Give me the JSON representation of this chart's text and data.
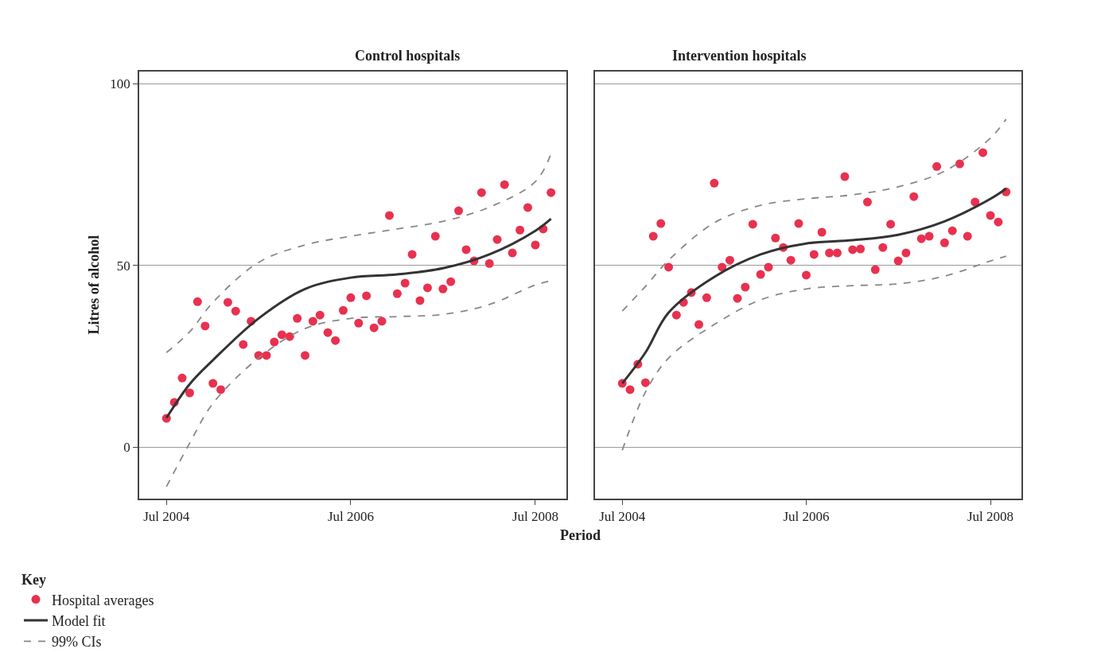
{
  "chart_data": [
    {
      "type": "scatter",
      "title": "Control hospitals",
      "xlabel": "Period",
      "ylabel": "Litres of alcohol",
      "legend_title": "Key",
      "legend": "bottom left",
      "grid": "y",
      "xlim": [
        "2004-03-15",
        "2008-11-01"
      ],
      "ylim": [
        -14.2,
        103.3
      ],
      "yticks": [
        0,
        50,
        100
      ],
      "xticks": [
        {
          "value": "2004-07",
          "label": "Jul 2004"
        },
        {
          "value": "2006-07",
          "label": "Jul 2006"
        },
        {
          "value": "2008-07",
          "label": "Jul 2008"
        }
      ],
      "x": [
        "2004-07",
        "2004-08",
        "2004-09",
        "2004-10",
        "2004-11",
        "2004-12",
        "2005-01",
        "2005-02",
        "2005-03",
        "2005-04",
        "2005-05",
        "2005-06",
        "2005-07",
        "2005-08",
        "2005-09",
        "2005-10",
        "2005-11",
        "2005-12",
        "2006-01",
        "2006-02",
        "2006-03",
        "2006-04",
        "2006-05",
        "2006-06",
        "2006-07",
        "2006-08",
        "2006-09",
        "2006-10",
        "2006-11",
        "2006-12",
        "2007-01",
        "2007-02",
        "2007-03",
        "2007-04",
        "2007-05",
        "2007-06",
        "2007-07",
        "2007-08",
        "2007-09",
        "2007-10",
        "2007-11",
        "2007-12",
        "2008-01",
        "2008-02",
        "2008-03",
        "2008-04",
        "2008-05",
        "2008-06",
        "2008-07",
        "2008-08",
        "2008-09"
      ],
      "series": [
        {
          "name": "Hospital averages",
          "marker": "circle",
          "color": "#e8314f",
          "values": [
            7.9,
            12.3,
            19.0,
            14.9,
            40.0,
            33.3,
            17.5,
            15.8,
            39.8,
            37.4,
            28.2,
            34.6,
            25.2,
            25.2,
            28.9,
            30.9,
            30.4,
            35.4,
            25.2,
            34.6,
            36.3,
            31.5,
            29.3,
            37.6,
            41.1,
            34.1,
            41.6,
            32.8,
            34.6,
            63.7,
            42.2,
            45.1,
            53.0,
            40.3,
            43.8,
            58.0,
            43.5,
            45.5,
            65.0,
            54.3,
            51.2,
            70.0,
            50.5,
            57.1,
            72.2,
            53.4,
            59.7,
            65.9,
            55.6,
            60.0,
            70.0
          ]
        },
        {
          "name": "Model fit",
          "type": "line",
          "marker": "none",
          "line_style": "solid",
          "color": "#333333",
          "x": [
            "2004-07",
            "2004-10",
            "2005-01",
            "2005-07",
            "2006-01",
            "2006-07",
            "2007-01",
            "2007-07",
            "2008-01",
            "2008-07",
            "2008-09"
          ],
          "values": [
            8,
            17.3,
            23.9,
            35.4,
            43.5,
            46.6,
            47.5,
            49.2,
            53,
            59.5,
            62.8
          ]
        },
        {
          "name": "99% CIs",
          "type": "line",
          "marker": "none",
          "line_style": "dashed",
          "color": "#888888",
          "x": [
            "2004-07",
            "2004-10",
            "2005-01",
            "2005-07",
            "2006-01",
            "2006-07",
            "2007-01",
            "2007-07",
            "2008-01",
            "2008-07",
            "2008-09"
          ],
          "values": [
            26,
            31.7,
            39.8,
            50.8,
            55.6,
            58,
            60,
            62.1,
            66,
            73,
            80.7
          ]
        },
        {
          "type": "line",
          "marker": "none",
          "line_style": "dashed",
          "color": "#888888",
          "x": [
            "2004-07",
            "2004-10",
            "2005-01",
            "2005-07",
            "2006-01",
            "2006-07",
            "2007-01",
            "2007-07",
            "2008-01",
            "2008-07",
            "2008-09"
          ],
          "values": [
            -10.9,
            1.1,
            12,
            24.5,
            32.6,
            35.4,
            35.9,
            36.5,
            39.2,
            44.6,
            45.7
          ]
        }
      ]
    },
    {
      "type": "scatter",
      "title": "Intervention hospitals",
      "grid": "y",
      "tick_labels": "x",
      "xlim": [
        "2004-03-15",
        "2008-11-01"
      ],
      "ylim": [
        -14.2,
        103.3
      ],
      "yticks": [
        0,
        50,
        100
      ],
      "xticks": [
        {
          "value": "2004-07",
          "label": "Jul 2004"
        },
        {
          "value": "2006-07",
          "label": "Jul 2006"
        },
        {
          "value": "2008-07",
          "label": "Jul 2008"
        }
      ],
      "x": [
        "2004-07",
        "2004-08",
        "2004-09",
        "2004-10",
        "2004-11",
        "2004-12",
        "2005-01",
        "2005-02",
        "2005-03",
        "2005-04",
        "2005-05",
        "2005-06",
        "2005-07",
        "2005-08",
        "2005-09",
        "2005-10",
        "2005-11",
        "2005-12",
        "2006-01",
        "2006-02",
        "2006-03",
        "2006-04",
        "2006-05",
        "2006-06",
        "2006-07",
        "2006-08",
        "2006-09",
        "2006-10",
        "2006-11",
        "2006-12",
        "2007-01",
        "2007-02",
        "2007-03",
        "2007-04",
        "2007-05",
        "2007-06",
        "2007-07",
        "2007-08",
        "2007-09",
        "2007-10",
        "2007-11",
        "2007-12",
        "2008-01",
        "2008-02",
        "2008-03",
        "2008-04",
        "2008-05",
        "2008-06",
        "2008-07",
        "2008-08",
        "2008-09"
      ],
      "series": [
        {
          "marker": "circle",
          "color": "#e8314f",
          "values": [
            17.5,
            15.8,
            22.8,
            17.7,
            58.0,
            61.5,
            49.5,
            36.3,
            39.8,
            42.5,
            33.7,
            41.1,
            72.6,
            49.5,
            51.4,
            40.9,
            44.0,
            61.3,
            47.5,
            49.5,
            57.5,
            54.9,
            51.4,
            61.5,
            47.3,
            53.0,
            59.1,
            53.4,
            53.4,
            74.4,
            54.3,
            54.5,
            67.4,
            48.8,
            54.9,
            61.3,
            51.2,
            53.4,
            68.9,
            57.3,
            58.0,
            77.2,
            56.2,
            59.5,
            77.9,
            58.0,
            67.4,
            81.0,
            63.7,
            61.9,
            70.2
          ]
        },
        {
          "type": "line",
          "marker": "none",
          "line_style": "solid",
          "color": "#333333",
          "x": [
            "2004-07",
            "2004-10",
            "2005-01",
            "2005-07",
            "2006-01",
            "2006-07",
            "2007-01",
            "2007-07",
            "2008-01",
            "2008-07",
            "2008-09"
          ],
          "values": [
            17.5,
            26,
            37,
            46.8,
            53,
            56,
            56.9,
            58.4,
            62.1,
            68.3,
            71.1
          ]
        },
        {
          "type": "line",
          "marker": "none",
          "line_style": "dashed",
          "color": "#888888",
          "x": [
            "2004-07",
            "2004-10",
            "2005-01",
            "2005-07",
            "2006-01",
            "2006-07",
            "2007-01",
            "2007-07",
            "2008-01",
            "2008-07",
            "2008-09"
          ],
          "values": [
            37.4,
            44.2,
            51.4,
            61.7,
            66.5,
            68.3,
            69.4,
            71.6,
            75.9,
            85,
            90.2
          ]
        },
        {
          "type": "line",
          "marker": "none",
          "line_style": "dashed",
          "color": "#888888",
          "x": [
            "2004-07",
            "2004-10",
            "2005-01",
            "2005-07",
            "2006-01",
            "2006-07",
            "2007-01",
            "2007-07",
            "2008-01",
            "2008-07",
            "2008-09"
          ],
          "values": [
            -0.9,
            15.1,
            24.5,
            33.7,
            40.5,
            43.5,
            44.4,
            44.9,
            47,
            51.2,
            52.5
          ]
        }
      ]
    }
  ]
}
